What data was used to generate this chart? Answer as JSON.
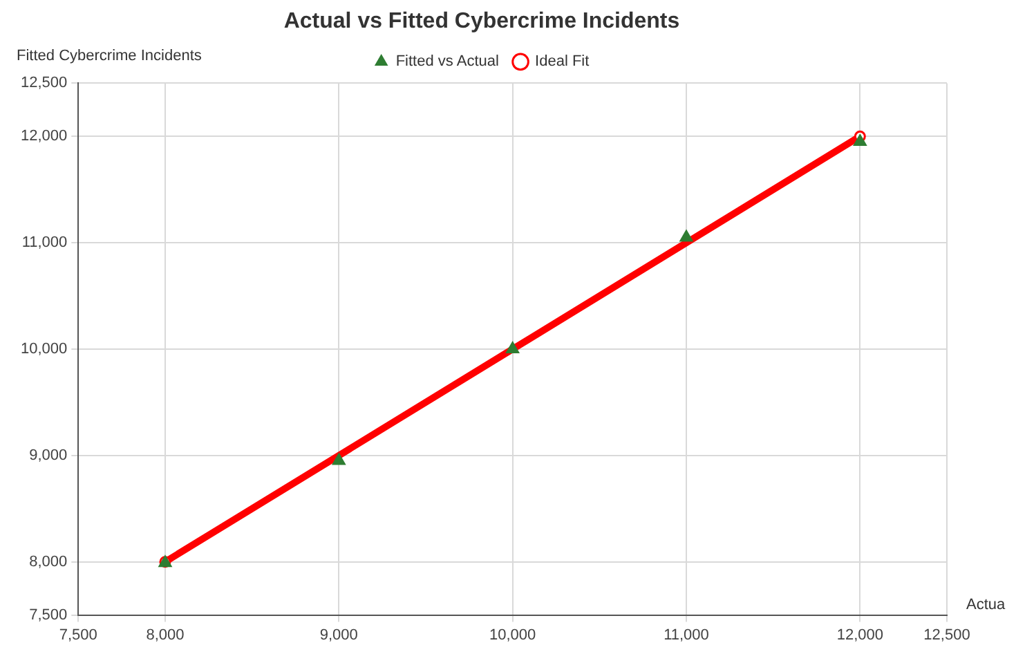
{
  "chart_data": {
    "type": "scatter",
    "title": "Actual vs Fitted Cybercrime Incidents",
    "xlabel": "Actua",
    "ylabel": "Fitted Cybercrime Incidents",
    "series": [
      {
        "name": "Ideal Fit",
        "type": "line",
        "color": "#ff0000",
        "x": [
          8000,
          12000
        ],
        "values": [
          8000,
          12000
        ],
        "marker": "circle",
        "line_style": "solid"
      },
      {
        "name": "Fitted vs Actual",
        "type": "scatter",
        "color": "#2e7d32",
        "x": [
          8000,
          9000,
          10000,
          11000,
          12000
        ],
        "values": [
          7990,
          8950,
          10000,
          11050,
          11950
        ],
        "marker": "triangle"
      }
    ],
    "xlim": [
      7500,
      12500
    ],
    "ylim": [
      7500,
      12500
    ],
    "xticks": [
      {
        "value": 7500,
        "label": "7,500"
      },
      {
        "value": 8000,
        "label": "8,000"
      },
      {
        "value": 9000,
        "label": "9,000"
      },
      {
        "value": 10000,
        "label": "10,000"
      },
      {
        "value": 11000,
        "label": "11,000"
      },
      {
        "value": 12000,
        "label": "12,000"
      },
      {
        "value": 12500,
        "label": "12,500"
      }
    ],
    "yticks": [
      {
        "value": 7500,
        "label": "7,500"
      },
      {
        "value": 8000,
        "label": "8,000"
      },
      {
        "value": 9000,
        "label": "9,000"
      },
      {
        "value": 10000,
        "label": "10,000"
      },
      {
        "value": 11000,
        "label": "11,000"
      },
      {
        "value": 12000,
        "label": "12,000"
      },
      {
        "value": 12500,
        "label": "12,500"
      }
    ],
    "grid": true,
    "legend": "top"
  }
}
